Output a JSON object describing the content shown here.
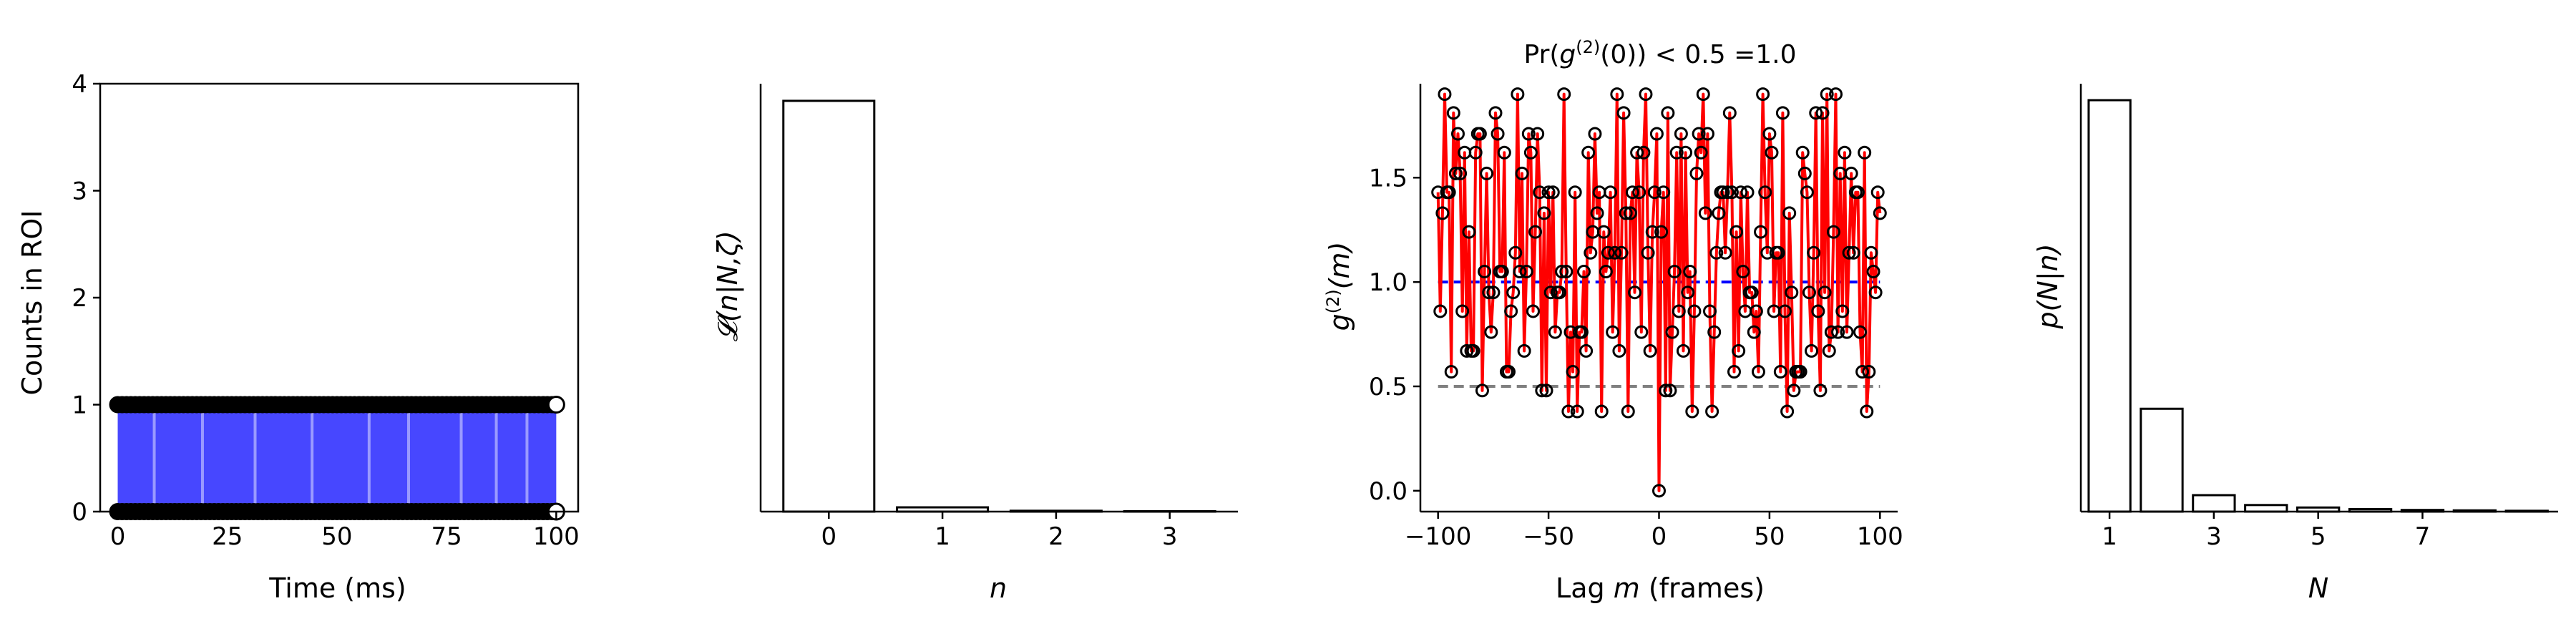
{
  "chart_data": [
    {
      "type": "scatter",
      "panel": "trace",
      "xlabel": "Time (ms)",
      "ylabel": "Counts in ROI",
      "xlim": [
        -4,
        105
      ],
      "ylim": [
        0,
        4
      ],
      "xticks": [
        0,
        25,
        50,
        75,
        100
      ],
      "yticks": [
        0,
        1,
        2,
        3,
        4
      ],
      "x_range": [
        0,
        100
      ],
      "count_levels": [
        0,
        1
      ],
      "final_point": {
        "x": 100,
        "values": [
          0,
          1
        ]
      },
      "colors": {
        "fill": "#0000ff",
        "markers": "#000000",
        "final_marker": "#ffffff"
      },
      "spines": "all four"
    },
    {
      "type": "bar",
      "panel": "likelihood",
      "xlabel_math": "n",
      "ylabel_math": "𝓛(n|N,ζ)",
      "categories": [
        "0",
        "1",
        "2",
        "3"
      ],
      "values": [
        0.96,
        0.01,
        0.002,
        0.001
      ],
      "ylim": [
        0,
        1.0
      ],
      "yticks_shown": false,
      "colors": {
        "bar_fill": "#ffffff",
        "bar_edge": "#000000"
      }
    },
    {
      "type": "line",
      "panel": "g2",
      "title_prefix": "Pr(",
      "title_g": "g",
      "title_sup": "(2)",
      "title_suffix": "(0)) < 0.5 =1.0",
      "xlabel_prefix": "Lag ",
      "xlabel_var": "m",
      "xlabel_suffix": " (frames)",
      "ylabel_g": "g",
      "ylabel_sup": "(2)",
      "ylabel_arg": "(m)",
      "xlim": [
        -108,
        108
      ],
      "ylim": [
        -0.1,
        1.95
      ],
      "xticks": [
        -100,
        -50,
        0,
        50,
        100
      ],
      "xtick_labels": [
        "−100",
        "−50",
        "0",
        "50",
        "100"
      ],
      "yticks": [
        0.0,
        0.5,
        1.0,
        1.5
      ],
      "ytick_labels": [
        "0.0",
        "0.5",
        "1.0",
        "1.5"
      ],
      "x_range": [
        -100,
        100
      ],
      "min_value": {
        "m": 0,
        "g2": 0.0
      },
      "value_levels": [
        0.38,
        0.48,
        0.57,
        0.67,
        0.76,
        0.86,
        0.95,
        1.05,
        1.14,
        1.24,
        1.33,
        1.43,
        1.52,
        1.62,
        1.71,
        1.81,
        1.9
      ],
      "reference_lines": [
        {
          "y": 1.0,
          "style": "dashed",
          "color": "#0000ff"
        },
        {
          "y": 0.5,
          "style": "dashed",
          "color": "#808080"
        }
      ],
      "colors": {
        "line": "#ff0000",
        "marker_edge": "#000000"
      }
    },
    {
      "type": "bar",
      "panel": "pN",
      "xlabel_math": "N",
      "ylabel_math": "p(N|n)",
      "categories": [
        1,
        2,
        3,
        4,
        5,
        6,
        7,
        8,
        9
      ],
      "xticks": [
        1,
        3,
        5,
        7
      ],
      "values": [
        0.5,
        0.125,
        0.02,
        0.008,
        0.005,
        0.003,
        0.002,
        0.0015,
        0.001
      ],
      "ylim": [
        0,
        0.52
      ],
      "yticks_shown": false,
      "colors": {
        "bar_fill": "#ffffff",
        "bar_edge": "#000000"
      }
    }
  ]
}
